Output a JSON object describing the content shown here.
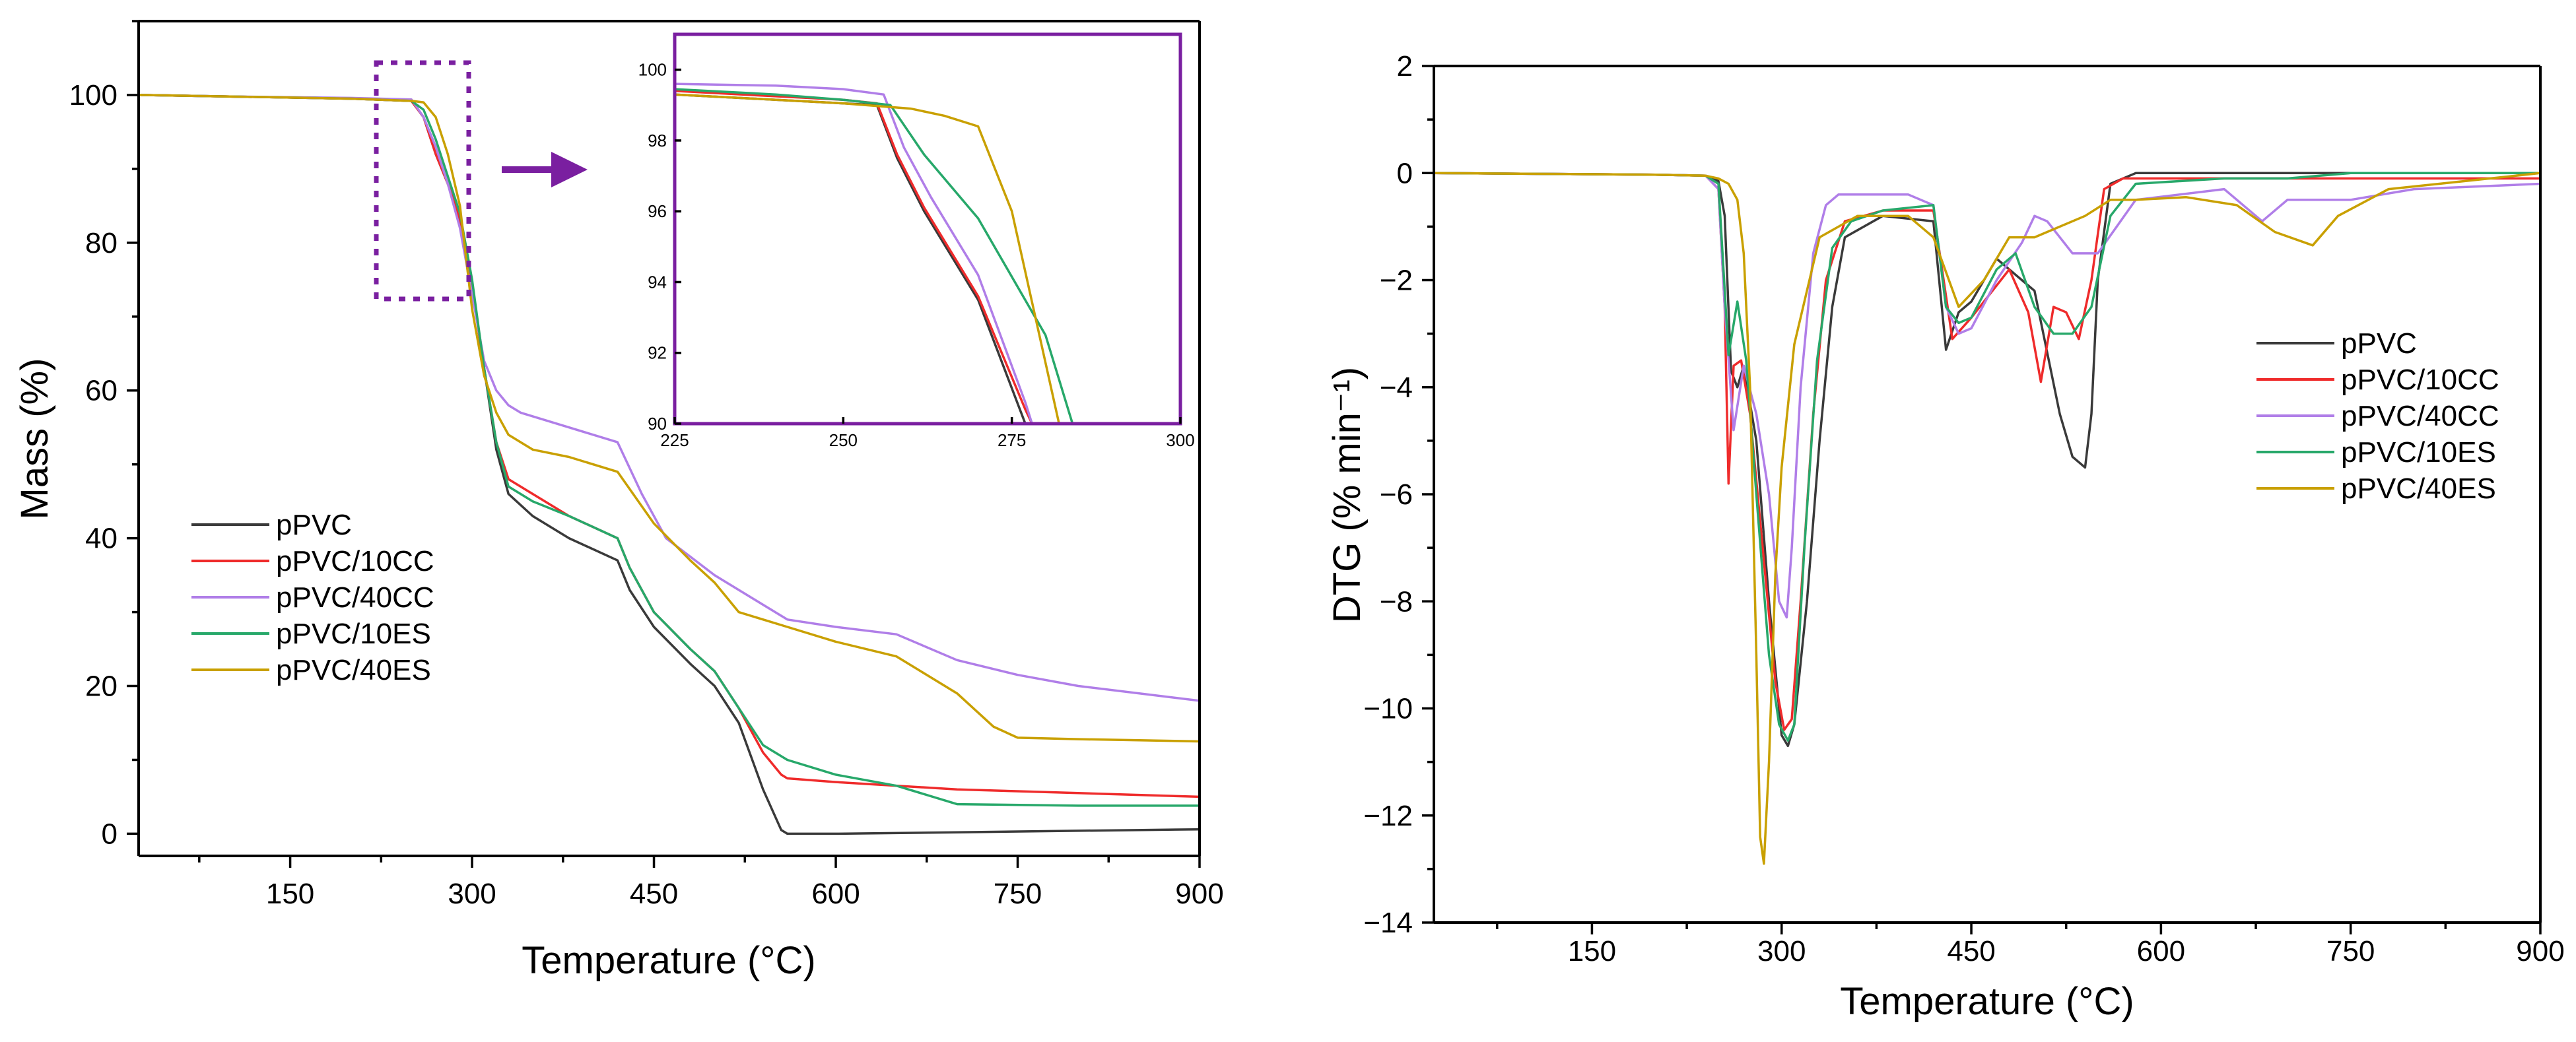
{
  "colors": {
    "pPVC": "#3a3a3a",
    "pPVC/10CC": "#ef2b2b",
    "pPVC/40CC": "#b07ee8",
    "pPVC/10ES": "#27a86a",
    "pPVC/40ES": "#c9a000",
    "annotation": "#7a1fa0"
  },
  "chart_data": [
    {
      "id": "tga",
      "type": "line",
      "xlabel": "Temperature (°C)",
      "ylabel": "Mass (%)",
      "xlim": [
        25,
        900
      ],
      "ylim": [
        -3,
        110
      ],
      "xticks": [
        150,
        300,
        450,
        600,
        750,
        900
      ],
      "yticks": [
        0,
        20,
        40,
        60,
        80,
        100
      ],
      "legend_position": "lower-left",
      "series": [
        {
          "name": "pPVC",
          "x": [
            25,
            100,
            200,
            250,
            260,
            270,
            280,
            290,
            300,
            310,
            320,
            330,
            350,
            380,
            420,
            430,
            450,
            480,
            500,
            520,
            540,
            555,
            560,
            600,
            700,
            800,
            900
          ],
          "y": [
            100,
            99.8,
            99.5,
            99.2,
            97,
            92,
            88,
            83,
            74,
            63,
            52,
            46,
            43,
            40,
            37,
            33,
            28,
            23,
            20,
            15,
            6,
            0.5,
            0,
            0,
            0.2,
            0.4,
            0.6
          ]
        },
        {
          "name": "pPVC/10CC",
          "x": [
            25,
            100,
            200,
            250,
            260,
            270,
            280,
            290,
            300,
            310,
            320,
            330,
            350,
            380,
            420,
            430,
            450,
            480,
            500,
            520,
            540,
            555,
            560,
            600,
            700,
            800,
            900
          ],
          "y": [
            100,
            99.8,
            99.5,
            99.2,
            97,
            92,
            88,
            83,
            74,
            63,
            53,
            48,
            46,
            43,
            40,
            36,
            30,
            25,
            22,
            17,
            11,
            8,
            7.5,
            7,
            6,
            5.5,
            5
          ]
        },
        {
          "name": "pPVC/40CC",
          "x": [
            25,
            100,
            200,
            250,
            260,
            270,
            280,
            290,
            300,
            310,
            320,
            330,
            340,
            380,
            420,
            440,
            460,
            500,
            540,
            560,
            600,
            650,
            700,
            750,
            800,
            900
          ],
          "y": [
            100,
            99.8,
            99.6,
            99.4,
            97,
            93,
            88,
            82,
            73,
            64,
            60,
            58,
            57,
            55,
            53,
            46,
            40,
            35,
            31,
            29,
            28,
            27,
            23.5,
            21.5,
            20,
            18
          ]
        },
        {
          "name": "pPVC/10ES",
          "x": [
            25,
            100,
            200,
            250,
            260,
            270,
            280,
            290,
            300,
            310,
            320,
            330,
            350,
            380,
            420,
            430,
            450,
            480,
            500,
            520,
            540,
            560,
            600,
            650,
            700,
            800,
            900
          ],
          "y": [
            100,
            99.8,
            99.5,
            99.2,
            98,
            94,
            89,
            84,
            75,
            63,
            53,
            47,
            45,
            43,
            40,
            36,
            30,
            25,
            22,
            17,
            12,
            10,
            8,
            6.5,
            4,
            3.8,
            3.8
          ]
        },
        {
          "name": "pPVC/40ES",
          "x": [
            25,
            100,
            200,
            250,
            260,
            270,
            280,
            290,
            300,
            310,
            320,
            330,
            350,
            380,
            420,
            450,
            480,
            500,
            520,
            560,
            600,
            650,
            700,
            730,
            750,
            800,
            900
          ],
          "y": [
            100,
            99.8,
            99.5,
            99.2,
            99,
            97,
            92,
            85,
            71,
            62,
            57,
            54,
            52,
            51,
            49,
            42,
            37,
            34,
            30,
            28,
            26,
            24,
            19,
            14.5,
            13,
            12.8,
            12.5
          ]
        }
      ],
      "inset": {
        "xlim": [
          225,
          300
        ],
        "ylim": [
          90,
          101
        ],
        "xticks": [
          225,
          250,
          275,
          300
        ],
        "yticks": [
          90,
          92,
          94,
          96,
          98,
          100
        ],
        "series": [
          {
            "name": "pPVC",
            "x": [
              225,
              240,
              250,
              255,
              258,
              262,
              270,
              276,
              277
            ],
            "y": [
              99.3,
              99.15,
              99.05,
              99.0,
              97.5,
              96.0,
              93.5,
              90.5,
              90
            ]
          },
          {
            "name": "pPVC/10CC",
            "x": [
              225,
              240,
              250,
              255,
              258,
              262,
              270,
              277,
              278
            ],
            "y": [
              99.4,
              99.25,
              99.15,
              99.05,
              97.6,
              96.1,
              93.6,
              90.4,
              90
            ]
          },
          {
            "name": "pPVC/40CC",
            "x": [
              225,
              240,
              250,
              256,
              259,
              263,
              270,
              277,
              278
            ],
            "y": [
              99.6,
              99.55,
              99.45,
              99.3,
              97.8,
              96.4,
              94.2,
              90.6,
              90
            ]
          },
          {
            "name": "pPVC/10ES",
            "x": [
              225,
              240,
              250,
              257,
              262,
              270,
              280,
              284
            ],
            "y": [
              99.45,
              99.3,
              99.15,
              99.0,
              97.6,
              95.8,
              92.5,
              90
            ]
          },
          {
            "name": "pPVC/40ES",
            "x": [
              225,
              240,
              250,
              260,
              265,
              270,
              275,
              282
            ],
            "y": [
              99.3,
              99.15,
              99.05,
              98.9,
              98.7,
              98.4,
              96.0,
              90
            ]
          }
        ]
      }
    },
    {
      "id": "dtg",
      "type": "line",
      "xlabel": "Temperature (°C)",
      "ylabel": "DTG (% min⁻¹)",
      "xlim": [
        25,
        900
      ],
      "ylim": [
        -14,
        2
      ],
      "xticks": [
        150,
        300,
        450,
        600,
        750,
        900
      ],
      "yticks": [
        -14,
        -12,
        -10,
        -8,
        -6,
        -4,
        -2,
        0,
        2
      ],
      "legend_position": "right",
      "series": [
        {
          "name": "pPVC",
          "x": [
            25,
            200,
            240,
            250,
            255,
            260,
            265,
            270,
            280,
            290,
            300,
            305,
            310,
            320,
            330,
            340,
            350,
            380,
            420,
            430,
            440,
            450,
            470,
            500,
            520,
            530,
            540,
            545,
            550,
            560,
            580,
            700,
            900
          ],
          "y": [
            0,
            -0.03,
            -0.05,
            -0.15,
            -0.8,
            -3.7,
            -4.0,
            -3.6,
            -5,
            -8,
            -10.5,
            -10.7,
            -10.3,
            -8,
            -5,
            -2.5,
            -1.2,
            -0.8,
            -0.9,
            -3.3,
            -2.6,
            -2.4,
            -1.6,
            -2.2,
            -4.5,
            -5.3,
            -5.5,
            -4.5,
            -2,
            -0.2,
            0,
            0,
            0
          ]
        },
        {
          "name": "pPVC/10CC",
          "x": [
            25,
            200,
            240,
            250,
            255,
            258,
            262,
            268,
            275,
            285,
            295,
            302,
            308,
            315,
            325,
            335,
            350,
            380,
            420,
            435,
            450,
            480,
            495,
            505,
            515,
            525,
            535,
            545,
            555,
            570,
            700,
            900
          ],
          "y": [
            0,
            -0.03,
            -0.05,
            -0.3,
            -2.5,
            -5.8,
            -3.6,
            -3.5,
            -4.5,
            -7,
            -9.5,
            -10.4,
            -10.2,
            -8,
            -4.5,
            -2,
            -0.9,
            -0.7,
            -0.7,
            -3.1,
            -2.7,
            -1.8,
            -2.6,
            -3.9,
            -2.5,
            -2.6,
            -3.1,
            -2,
            -0.3,
            -0.1,
            -0.1,
            -0.1
          ]
        },
        {
          "name": "pPVC/40CC",
          "x": [
            25,
            200,
            240,
            250,
            255,
            262,
            270,
            280,
            290,
            298,
            304,
            308,
            315,
            325,
            335,
            345,
            360,
            400,
            420,
            430,
            440,
            450,
            470,
            490,
            500,
            510,
            530,
            550,
            580,
            650,
            680,
            700,
            720,
            750,
            800,
            900
          ],
          "y": [
            0,
            -0.03,
            -0.05,
            -0.3,
            -2.5,
            -4.8,
            -3.6,
            -4.5,
            -6,
            -8,
            -8.3,
            -7,
            -4,
            -1.5,
            -0.6,
            -0.4,
            -0.4,
            -0.4,
            -0.6,
            -2.5,
            -3.0,
            -2.9,
            -2.0,
            -1.3,
            -0.8,
            -0.9,
            -1.5,
            -1.5,
            -0.5,
            -0.3,
            -0.9,
            -0.5,
            -0.5,
            -0.5,
            -0.3,
            -0.2
          ]
        },
        {
          "name": "pPVC/10ES",
          "x": [
            25,
            200,
            240,
            250,
            258,
            265,
            272,
            280,
            290,
            298,
            305,
            310,
            318,
            328,
            340,
            355,
            380,
            420,
            430,
            440,
            450,
            470,
            485,
            500,
            515,
            530,
            545,
            560,
            580,
            650,
            700,
            750,
            800,
            900
          ],
          "y": [
            0,
            -0.03,
            -0.05,
            -0.2,
            -3.4,
            -2.4,
            -3.5,
            -6,
            -9,
            -10.3,
            -10.6,
            -10.3,
            -7,
            -3.5,
            -1.4,
            -0.9,
            -0.7,
            -0.6,
            -2.5,
            -2.8,
            -2.7,
            -1.8,
            -1.5,
            -2.5,
            -3.0,
            -3.0,
            -2.5,
            -0.8,
            -0.2,
            -0.1,
            -0.1,
            0,
            0,
            0
          ]
        },
        {
          "name": "pPVC/40ES",
          "x": [
            25,
            200,
            240,
            250,
            258,
            265,
            270,
            275,
            280,
            283,
            286,
            290,
            295,
            300,
            310,
            330,
            360,
            400,
            420,
            440,
            460,
            480,
            500,
            540,
            560,
            580,
            620,
            660,
            690,
            720,
            740,
            780,
            900
          ],
          "y": [
            0,
            -0.03,
            -0.05,
            -0.1,
            -0.2,
            -0.5,
            -1.5,
            -4,
            -9,
            -12.4,
            -12.9,
            -11,
            -7.5,
            -5.5,
            -3.2,
            -1.2,
            -0.8,
            -0.8,
            -1.2,
            -2.5,
            -2.0,
            -1.2,
            -1.2,
            -0.8,
            -0.5,
            -0.5,
            -0.45,
            -0.6,
            -1.1,
            -1.35,
            -0.8,
            -0.3,
            0
          ]
        }
      ]
    }
  ],
  "legend": [
    "pPVC",
    "pPVC/10CC",
    "pPVC/40CC",
    "pPVC/10ES",
    "pPVC/40ES"
  ]
}
